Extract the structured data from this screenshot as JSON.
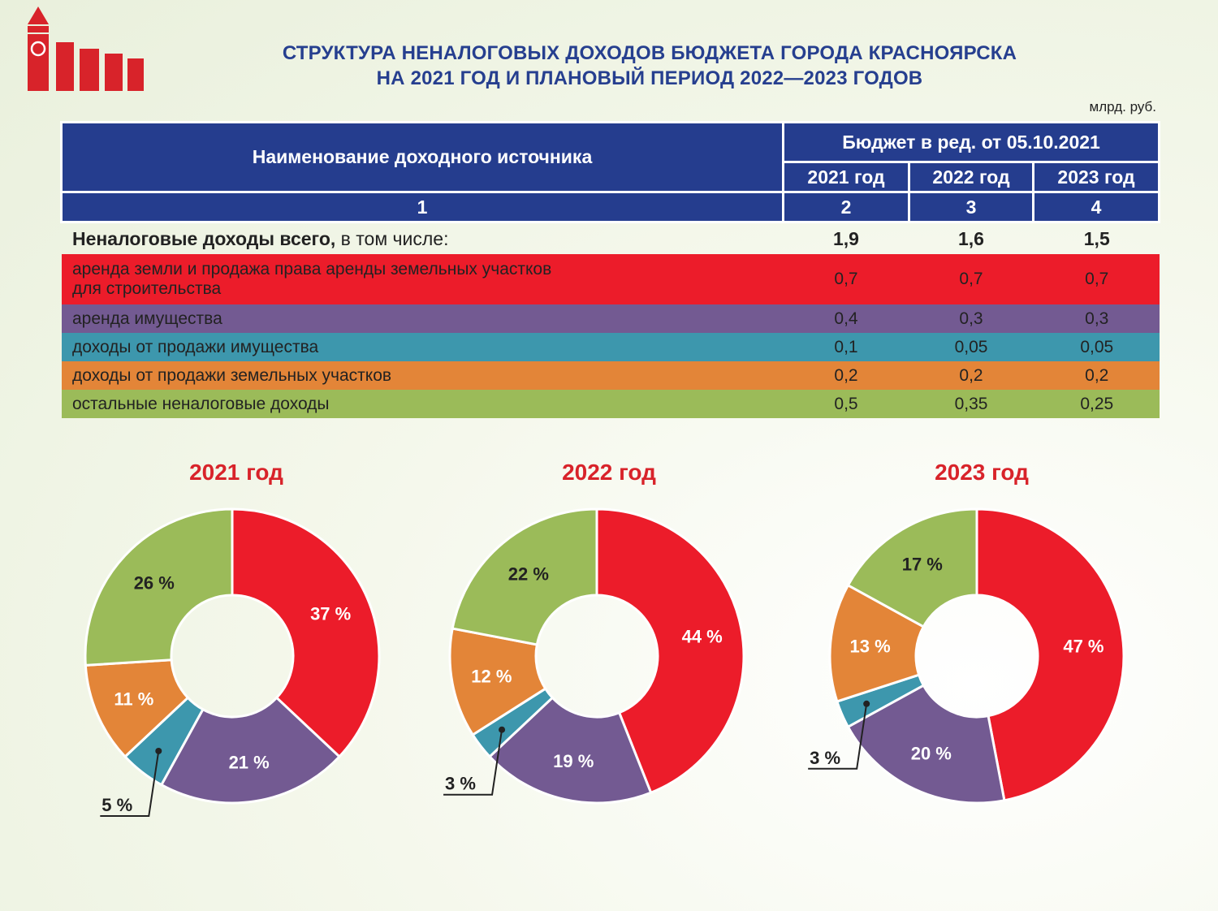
{
  "title_line1": "СТРУКТУРА НЕНАЛОГОВЫХ ДОХОДОВ БЮДЖЕТА ГОРОДА КРАСНОЯРСКА",
  "title_line2": "НА 2021 ГОД И ПЛАНОВЫЙ ПЕРИОД 2022—2023  ГОДОВ",
  "unit": "млрд. руб.",
  "table": {
    "col_name_header": "Наименование доходного источника",
    "budget_header": "Бюджет в ред. от 05.10.2021",
    "year_headers": [
      "2021 год",
      "2022 год",
      "2023 год"
    ],
    "col_numbers": [
      "1",
      "2",
      "3",
      "4"
    ],
    "total": {
      "label_bold": "Неналоговые доходы всего,",
      "label_rest": " в том числе:",
      "values": [
        "1,9",
        "1,6",
        "1,5"
      ]
    },
    "rows": [
      {
        "line1": "аренда земли и продажа права аренды земельных участков",
        "line2": "для строительства",
        "values": [
          "0,7",
          "0,7",
          "0,7"
        ],
        "color": "#ec1c2a"
      },
      {
        "line1": "аренда имущества",
        "line2": "",
        "values": [
          "0,4",
          "0,3",
          "0,3"
        ],
        "color": "#735a92"
      },
      {
        "line1": "доходы от продажи имущества",
        "line2": "",
        "values": [
          "0,1",
          "0,05",
          "0,05"
        ],
        "color": "#3d97ad"
      },
      {
        "line1": "доходы от продажи земельных участков",
        "line2": "",
        "values": [
          "0,2",
          "0,2",
          "0,2"
        ],
        "color": "#e38538"
      },
      {
        "line1": "остальные неналоговые доходы",
        "line2": "",
        "values": [
          "0,5",
          "0,35",
          "0,25"
        ],
        "color": "#9bbb59"
      }
    ]
  },
  "chart_data": [
    {
      "type": "pie",
      "title": "2021 год",
      "labels": [
        "37 %",
        "21 %",
        "5 %",
        "11 %",
        "26 %"
      ],
      "values": [
        37,
        21,
        5,
        11,
        26
      ],
      "colors": [
        "#ec1c2a",
        "#735a92",
        "#3d97ad",
        "#e38538",
        "#9bbb59"
      ]
    },
    {
      "type": "pie",
      "title": "2022 год",
      "labels": [
        "44 %",
        "19 %",
        "3 %",
        "12 %",
        "22 %"
      ],
      "values": [
        44,
        19,
        3,
        12,
        22
      ],
      "colors": [
        "#ec1c2a",
        "#735a92",
        "#3d97ad",
        "#e38538",
        "#9bbb59"
      ]
    },
    {
      "type": "pie",
      "title": "2023 год",
      "labels": [
        "47 %",
        "20 %",
        "3 %",
        "13 %",
        "17 %"
      ],
      "values": [
        47,
        20,
        3,
        13,
        17
      ],
      "colors": [
        "#ec1c2a",
        "#735a92",
        "#3d97ad",
        "#e38538",
        "#9bbb59"
      ]
    }
  ]
}
